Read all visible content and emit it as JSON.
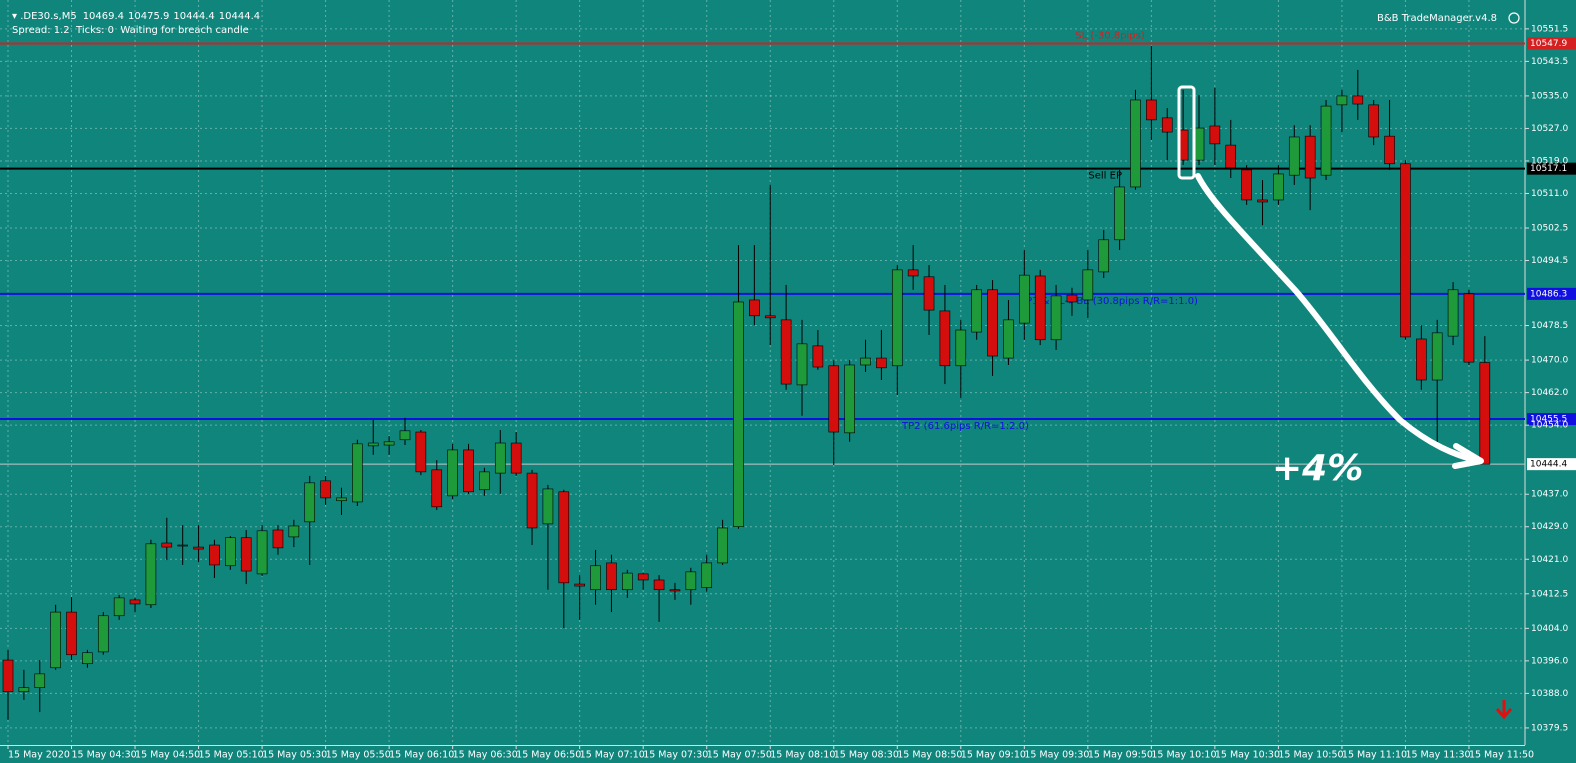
{
  "chart_data": {
    "type": "candlestick",
    "symbol": ".DE30.s,M5",
    "status": "Spread: 1.2  Ticks: 0  Waiting for breach candle",
    "indicator": "B&B TradeManager.v4.8",
    "annotation": "+4%",
    "up_color": "#1e9a3a",
    "down_color": "#d40d0d",
    "categories": [
      "15 May 2020",
      null,
      null,
      null,
      "15 May 04:30",
      null,
      null,
      null,
      "15 May 04:50",
      null,
      null,
      null,
      "15 May 05:10",
      null,
      null,
      null,
      "15 May 05:30",
      null,
      null,
      null,
      "15 May 05:50",
      null,
      null,
      null,
      "15 May 06:10",
      null,
      null,
      null,
      "15 May 06:30",
      null,
      null,
      null,
      "15 May 06:50",
      null,
      null,
      null,
      "15 May 07:10",
      null,
      null,
      null,
      "15 May 07:30",
      null,
      null,
      null,
      "15 May 07:50",
      null,
      null,
      null,
      "15 May 08:10",
      null,
      null,
      null,
      "15 May 08:30",
      null,
      null,
      null,
      "15 May 08:50",
      null,
      null,
      null,
      "15 May 09:10",
      null,
      null,
      null,
      "15 May 09:30",
      null,
      null,
      null,
      "15 May 09:50",
      null,
      null,
      null,
      "15 May 10:10",
      null,
      null,
      null,
      "15 May 10:30",
      null,
      null,
      null,
      "15 May 10:50",
      null,
      null,
      null,
      "15 May 11:10",
      null,
      null,
      null,
      "15 May 11:30",
      null,
      null,
      null,
      "15 May 11:50",
      null
    ],
    "open": [
      10396.2,
      10388.4,
      10389.4,
      10394.3,
      10408.0,
      10395.3,
      10398.2,
      10407.1,
      10411.0,
      10409.8,
      10425.0,
      10424.5,
      10424.0,
      10424.5,
      10419.4,
      10426.3,
      10417.4,
      10428.2,
      10426.5,
      10430.2,
      10440.3,
      10435.4,
      10435.1,
      10448.9,
      10449.1,
      10450.4,
      10452.3,
      10443.0,
      10436.6,
      10447.9,
      10438.1,
      10442.2,
      10449.6,
      10442.2,
      10429.7,
      10437.6,
      10414.9,
      10413.5,
      10420.1,
      10413.5,
      10417.4,
      10415.9,
      10413.5,
      10413.5,
      10414.0,
      10420.1,
      10429.0,
      10484.8,
      10480.9,
      10479.9,
      10463.9,
      10473.5,
      10468.6,
      10452.1,
      10468.8,
      10470.5,
      10468.6,
      10492.2,
      10490.5,
      10482.1,
      10468.6,
      10476.9,
      10487.3,
      10470.5,
      10479.1,
      10490.7,
      10475.0,
      10486.0,
      10484.8,
      10491.7,
      10499.6,
      10512.6,
      10534.0,
      10529.6,
      10526.6,
      10519.2,
      10527.6,
      10522.9,
      10516.8,
      10509.4,
      10509.4,
      10515.5,
      10525.1,
      10515.5,
      10532.8,
      10535.0,
      10532.8,
      10525.1,
      10518.3,
      10475.2,
      10465.1,
      10475.9,
      10486.3,
      10469.4
    ],
    "high": [
      10398.7,
      10393.8,
      10396.2,
      10409.8,
      10411.7,
      10398.7,
      10408.0,
      10412.2,
      10411.5,
      10425.8,
      10431.2,
      10429.4,
      10429.4,
      10425.8,
      10426.7,
      10428.2,
      10429.4,
      10429.4,
      10430.7,
      10441.5,
      10441.5,
      10438.6,
      10450.4,
      10455.3,
      10451.3,
      10455.8,
      10452.8,
      10445.4,
      10449.4,
      10449.4,
      10443.5,
      10452.8,
      10452.3,
      10443.0,
      10439.3,
      10438.1,
      10417.1,
      10423.3,
      10422.1,
      10418.4,
      10417.6,
      10417.1,
      10415.2,
      10418.9,
      10422.1,
      10430.7,
      10498.3,
      10498.3,
      10513.1,
      10488.5,
      10479.9,
      10477.4,
      10470.0,
      10470.0,
      10475.0,
      10477.4,
      10493.4,
      10498.3,
      10493.4,
      10488.5,
      10479.9,
      10488.5,
      10489.7,
      10484.8,
      10497.1,
      10492.2,
      10488.5,
      10487.8,
      10497.1,
      10502.0,
      10516.8,
      10536.5,
      10547.3,
      10532.0,
      10536.5,
      10535.2,
      10537.0,
      10529.1,
      10518.0,
      10514.3,
      10518.0,
      10527.8,
      10527.8,
      10534.0,
      10536.5,
      10541.4,
      10534.0,
      10534.0,
      10519.2,
      10478.6,
      10479.9,
      10489.2,
      10487.3,
      10475.9
    ],
    "low": [
      10381.5,
      10386.4,
      10383.4,
      10393.8,
      10396.2,
      10394.3,
      10397.5,
      10406.1,
      10408.0,
      10409.0,
      10420.8,
      10419.6,
      10420.3,
      10416.4,
      10418.4,
      10414.9,
      10416.9,
      10422.1,
      10424.0,
      10419.6,
      10434.4,
      10431.9,
      10434.1,
      10446.7,
      10446.7,
      10449.1,
      10441.7,
      10433.1,
      10435.8,
      10437.1,
      10436.6,
      10437.1,
      10441.5,
      10424.5,
      10413.5,
      10404.1,
      10406.1,
      10409.8,
      10408.0,
      10411.5,
      10413.5,
      10405.6,
      10411.0,
      10409.8,
      10413.0,
      10419.6,
      10428.5,
      10478.6,
      10473.7,
      10462.7,
      10456.3,
      10467.6,
      10444.2,
      10449.9,
      10467.1,
      10465.1,
      10461.4,
      10487.3,
      10476.2,
      10464.1,
      10460.7,
      10475.0,
      10466.1,
      10468.8,
      10475.0,
      10473.7,
      10472.5,
      10480.9,
      10480.4,
      10490.2,
      10497.1,
      10511.9,
      10524.2,
      10519.2,
      10518.0,
      10518.0,
      10518.0,
      10514.8,
      10508.2,
      10503.2,
      10508.2,
      10513.1,
      10506.9,
      10514.3,
      10526.1,
      10529.1,
      10522.9,
      10516.8,
      10475.0,
      10462.7,
      10449.1,
      10473.7,
      10468.8,
      10444.4
    ],
    "close": [
      10388.4,
      10389.4,
      10392.8,
      10408.0,
      10397.5,
      10398.0,
      10407.1,
      10411.5,
      10410.0,
      10424.8,
      10424.0,
      10424.4,
      10423.5,
      10419.6,
      10426.3,
      10418.1,
      10428.0,
      10423.8,
      10429.2,
      10439.8,
      10436.1,
      10436.1,
      10449.4,
      10449.6,
      10449.9,
      10452.6,
      10442.5,
      10433.9,
      10447.9,
      10437.6,
      10442.5,
      10449.6,
      10442.2,
      10428.7,
      10438.3,
      10415.2,
      10414.4,
      10419.4,
      10413.5,
      10417.6,
      10415.9,
      10413.5,
      10413.2,
      10417.9,
      10420.1,
      10428.7,
      10484.3,
      10480.9,
      10480.4,
      10464.1,
      10474.0,
      10468.3,
      10452.3,
      10468.8,
      10470.5,
      10468.1,
      10492.2,
      10490.7,
      10482.3,
      10468.6,
      10477.4,
      10487.3,
      10471.0,
      10479.9,
      10490.9,
      10475.0,
      10485.8,
      10484.3,
      10492.2,
      10499.6,
      10512.6,
      10534.0,
      10529.1,
      10526.1,
      10519.2,
      10527.1,
      10523.2,
      10517.3,
      10509.4,
      10508.9,
      10515.8,
      10524.9,
      10514.8,
      10532.5,
      10535.0,
      10533.0,
      10524.9,
      10518.3,
      10475.7,
      10465.1,
      10476.7,
      10487.3,
      10469.5,
      10444.4
    ],
    "hlines": [
      {
        "name": "SL (-30.8pips)",
        "value": 10547.9,
        "color": "#d42020"
      },
      {
        "name": "Sell EP",
        "value": 10517.1,
        "color": "#000000"
      },
      {
        "name": "TP1 & SL->BE (30.8pips R/R=1:1.0)",
        "value": 10486.3,
        "color": "#1010e0"
      },
      {
        "name": "TP2 (61.6pips R/R=1:2.0)",
        "value": 10455.5,
        "color": "#1010e0"
      }
    ],
    "ylim": [
      10375.3,
      10558.6
    ],
    "yticks": [
      10379.5,
      {
        "value": 10388,
        "label": "10388.0"
      },
      {
        "value": 10396,
        "label": "10396.0"
      },
      {
        "value": 10404,
        "label": "10404.0"
      },
      10412.5,
      {
        "value": 10421,
        "label": "10421.0"
      },
      {
        "value": 10429,
        "label": "10429.0"
      },
      {
        "value": 10437,
        "label": "10437.0"
      },
      {
        "value": 10454,
        "label": "10454.0"
      },
      {
        "value": 10462,
        "label": "10462.0"
      },
      {
        "value": 10470,
        "label": "10470.0"
      },
      10478.5,
      10494.5,
      10502.5,
      {
        "value": 10511,
        "label": "10511.0"
      },
      {
        "value": 10519,
        "label": "10519.0"
      },
      {
        "value": 10527,
        "label": "10527.0"
      },
      {
        "value": 10535,
        "label": "10535.0"
      },
      10543.5,
      10551.5
    ],
    "grid": true
  }
}
